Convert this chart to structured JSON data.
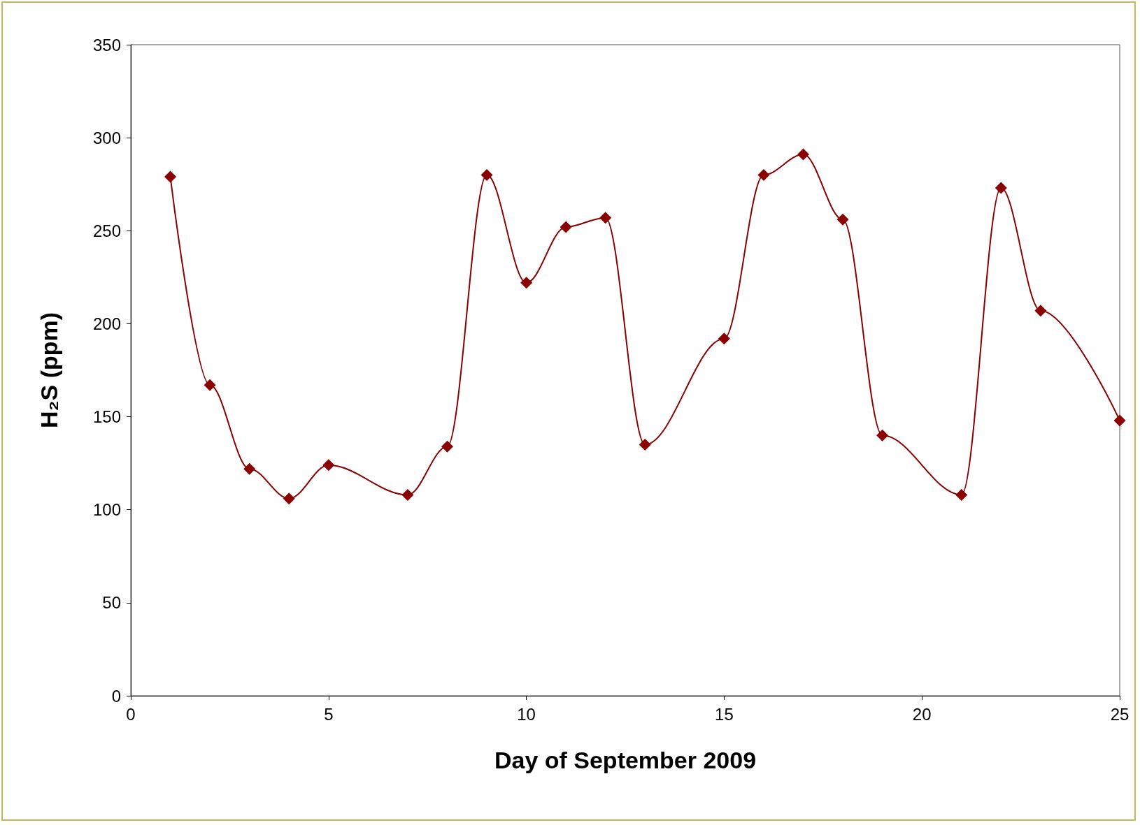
{
  "chart_data": {
    "type": "line",
    "xlabel": "Day of September 2009",
    "ylabel": "H₂S (ppm)",
    "x": [
      1,
      2,
      3,
      4,
      5,
      7,
      8,
      9,
      10,
      11,
      12,
      13,
      15,
      16,
      17,
      18,
      19,
      21,
      22,
      23,
      25
    ],
    "series": [
      {
        "color": "#8b0000",
        "values": [
          279,
          167,
          122,
          106,
          124,
          108,
          134,
          280,
          222,
          252,
          257,
          135,
          192,
          280,
          291,
          256,
          140,
          108,
          273,
          207,
          148
        ]
      }
    ],
    "xlim": [
      0,
      25
    ],
    "xticks": [
      0,
      5,
      10,
      15,
      20,
      25
    ],
    "ylim": [
      0,
      350
    ],
    "yticks": [
      0,
      50,
      100,
      150,
      200,
      250,
      300,
      350
    ],
    "grid": false,
    "marker": "diamond",
    "line_style": "solid"
  }
}
